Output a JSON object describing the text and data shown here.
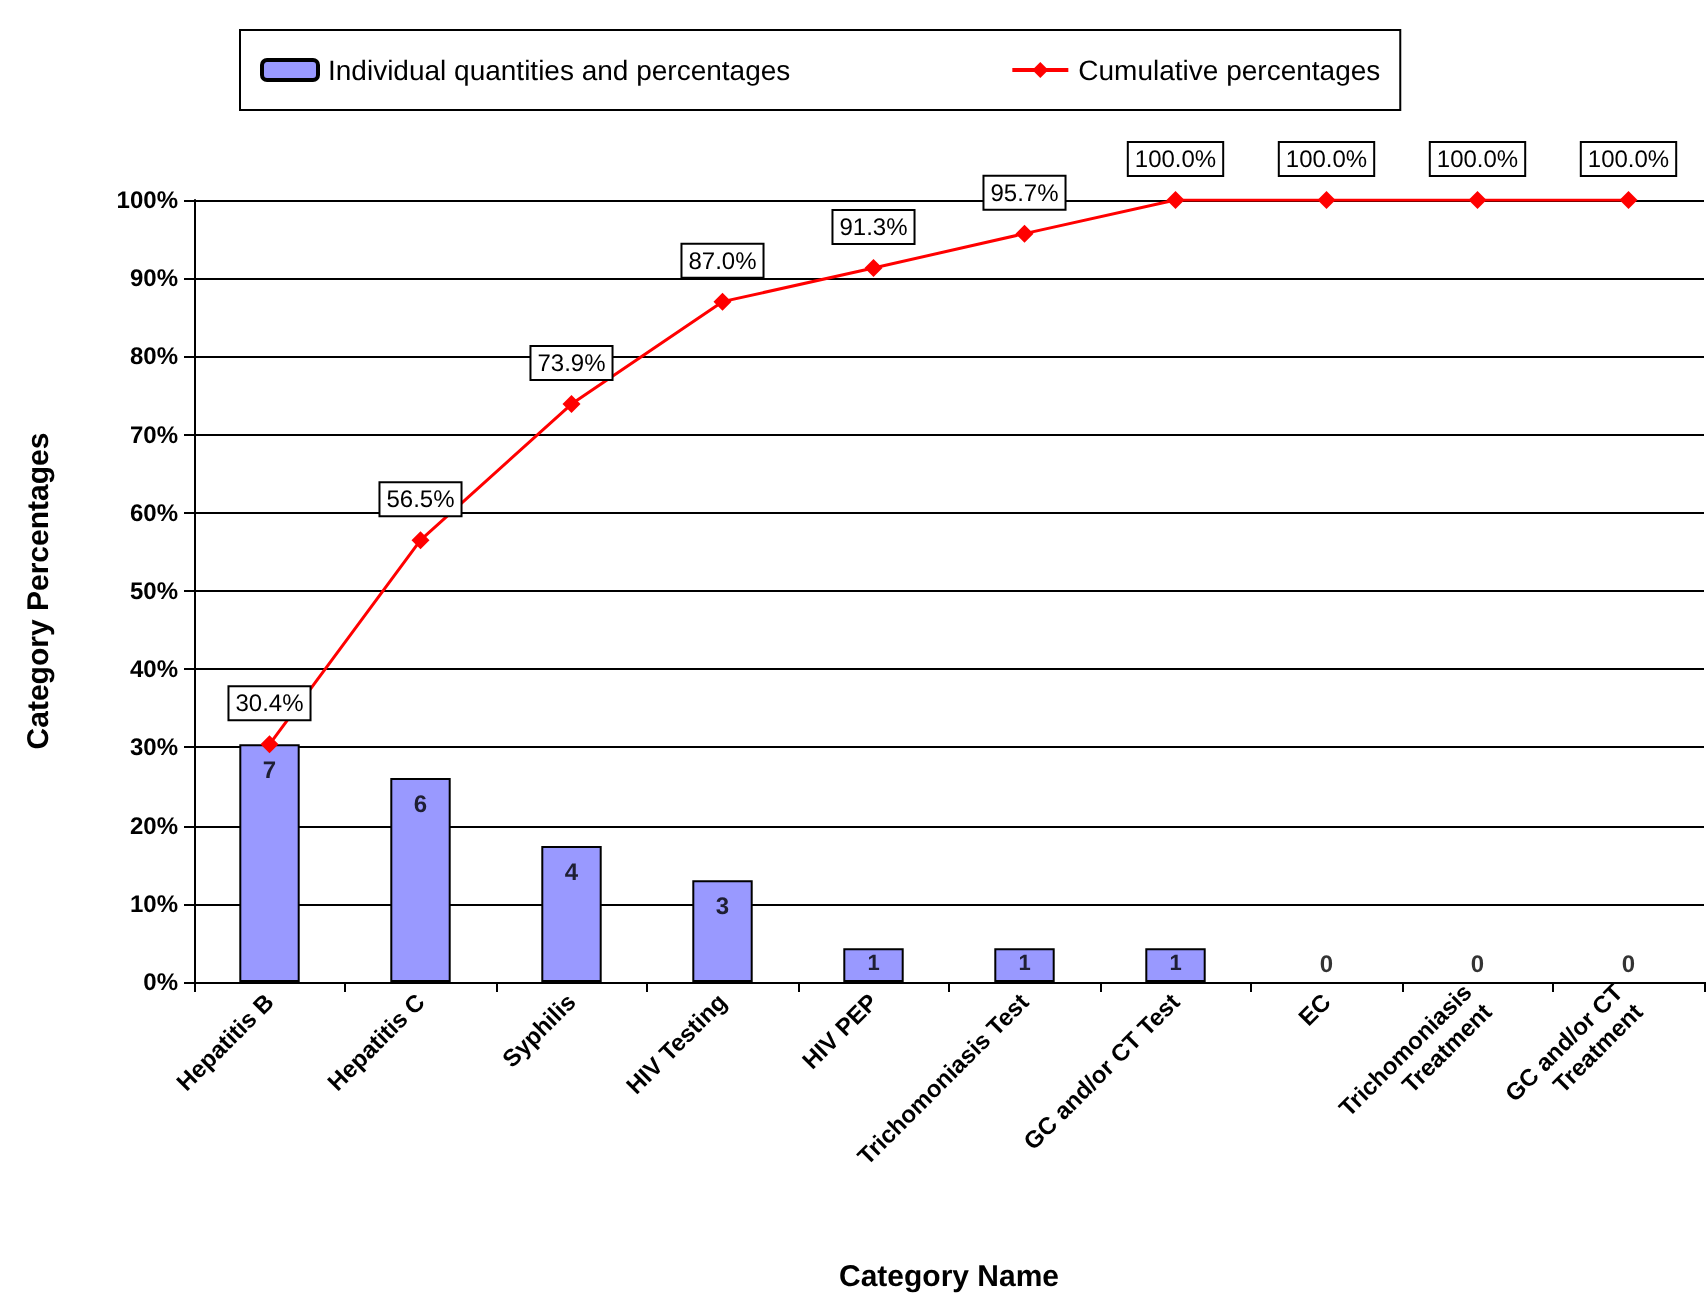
{
  "chart_data": {
    "type": "bar",
    "xlabel": "Category Name",
    "ylabel": "Category Percentages",
    "categories": [
      "Hepatitis B",
      "Hepatitis C",
      "Syphilis",
      "HIV Testing",
      "HIV PEP",
      "Trichomoniasis Test",
      "GC and/or CT Test",
      "EC",
      "Trichomoniasis\nTreatment",
      "GC and/or CT\nTreatment"
    ],
    "series": [
      {
        "name": "Individual quantities and percentages",
        "color": "#9999ff",
        "values": [
          30.4,
          26.1,
          17.4,
          13.0,
          4.3,
          4.3,
          4.3,
          0,
          0,
          0
        ]
      },
      {
        "name": "Cumulative percentages",
        "type": "line",
        "color": "#ff0000",
        "values": [
          30.4,
          56.5,
          73.9,
          87.0,
          91.3,
          95.7,
          100.0,
          100.0,
          100.0,
          100.0
        ],
        "value_labels": [
          "30.4%",
          "56.5%",
          "73.9%",
          "87.0%",
          "91.3%",
          "95.7%",
          "100.0%",
          "100.0%",
          "100.0%",
          "100.0%"
        ]
      }
    ],
    "annotations": [
      {
        "text": "7",
        "x": "Hepatitis B",
        "y": 30.4
      },
      {
        "text": "6",
        "x": "Hepatitis C",
        "y": 26.1
      },
      {
        "text": "4",
        "x": "Syphilis",
        "y": 17.4
      },
      {
        "text": "3",
        "x": "HIV Testing",
        "y": 13.0
      },
      {
        "text": "1",
        "x": "HIV PEP",
        "y": 4.3
      },
      {
        "text": "1",
        "x": "Trichomoniasis Test",
        "y": 4.3
      },
      {
        "text": "1",
        "x": "GC and/or CT Test",
        "y": 4.3
      },
      {
        "text": "0",
        "x": "EC",
        "y": 0
      },
      {
        "text": "0",
        "x": "Trichomoniasis\nTreatment",
        "y": 0
      },
      {
        "text": "0",
        "x": "GC and/or CT\nTreatment",
        "y": 0
      }
    ],
    "ylim": [
      0,
      100
    ],
    "yticks": [
      {
        "value": 0,
        "label": "0%"
      },
      {
        "value": 10,
        "label": "10%"
      },
      {
        "value": 20,
        "label": "20%"
      },
      {
        "value": 30,
        "label": "30%"
      },
      {
        "value": 40,
        "label": "40%"
      },
      {
        "value": 50,
        "label": "50%"
      },
      {
        "value": 60,
        "label": "60%"
      },
      {
        "value": 70,
        "label": "70%"
      },
      {
        "value": 80,
        "label": "80%"
      },
      {
        "value": 90,
        "label": "90%"
      },
      {
        "value": 100,
        "label": "100%"
      }
    ],
    "grid": "y",
    "legend": "top",
    "marker": "diamond"
  }
}
